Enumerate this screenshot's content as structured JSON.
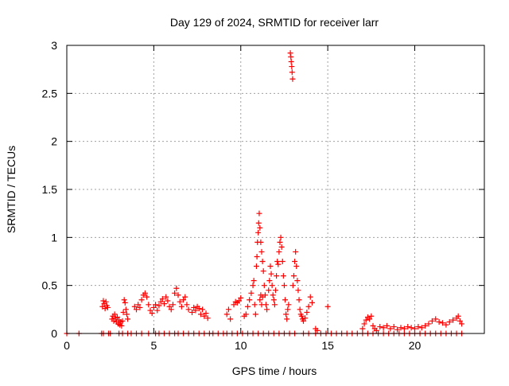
{
  "chart_data": {
    "type": "scatter",
    "title": "Day 129 of 2024, SRMTID for receiver larr",
    "xlabel": "GPS time / hours",
    "ylabel": "SRMTID / TECUs",
    "xlim": [
      0,
      24
    ],
    "ylim": [
      0,
      3
    ],
    "xticks": [
      0,
      5,
      10,
      15,
      20
    ],
    "xtick_labels": [
      "0",
      "5",
      "10",
      "15",
      "20"
    ],
    "yticks": [
      0,
      0.5,
      1,
      1.5,
      2,
      2.5,
      3
    ],
    "ytick_labels": [
      "0",
      "0.5",
      "1",
      "1.5",
      "2",
      "2.5",
      "3"
    ],
    "grid": true,
    "marker": "+",
    "marker_color": "#ff0000",
    "series": [
      {
        "name": "SRMTID",
        "points": [
          [
            0.0,
            0
          ],
          [
            0.7,
            0
          ],
          [
            2.0,
            0
          ],
          [
            2.1,
            0
          ],
          [
            2.4,
            0
          ],
          [
            2.5,
            0
          ],
          [
            3.0,
            0
          ],
          [
            3.2,
            0
          ],
          [
            3.5,
            0
          ],
          [
            3.7,
            0
          ],
          [
            4.0,
            0
          ],
          [
            4.3,
            0
          ],
          [
            4.7,
            0
          ],
          [
            5.1,
            0
          ],
          [
            5.3,
            0
          ],
          [
            5.6,
            0
          ],
          [
            5.9,
            0
          ],
          [
            6.2,
            0
          ],
          [
            6.4,
            0
          ],
          [
            6.7,
            0
          ],
          [
            7.0,
            0
          ],
          [
            7.3,
            0
          ],
          [
            7.6,
            0
          ],
          [
            7.9,
            0
          ],
          [
            8.2,
            0
          ],
          [
            8.4,
            0
          ],
          [
            8.7,
            0
          ],
          [
            9.0,
            0
          ],
          [
            9.2,
            0
          ],
          [
            9.5,
            0
          ],
          [
            9.8,
            0
          ],
          [
            10.1,
            0
          ],
          [
            10.4,
            0
          ],
          [
            10.7,
            0
          ],
          [
            11.0,
            0
          ],
          [
            11.3,
            0
          ],
          [
            11.6,
            0
          ],
          [
            11.9,
            0
          ],
          [
            12.2,
            0
          ],
          [
            12.5,
            0
          ],
          [
            12.8,
            0
          ],
          [
            13.1,
            0
          ],
          [
            13.6,
            0
          ],
          [
            13.9,
            0
          ],
          [
            14.3,
            0
          ],
          [
            14.6,
            0
          ],
          [
            14.9,
            0
          ],
          [
            15.2,
            0
          ],
          [
            15.5,
            0
          ],
          [
            15.8,
            0
          ],
          [
            16.1,
            0
          ],
          [
            16.4,
            0
          ],
          [
            16.7,
            0
          ],
          [
            17.0,
            0
          ],
          [
            17.3,
            0
          ],
          [
            17.6,
            0
          ],
          [
            17.9,
            0
          ],
          [
            18.2,
            0
          ],
          [
            18.5,
            0
          ],
          [
            18.8,
            0
          ],
          [
            19.1,
            0
          ],
          [
            19.4,
            0
          ],
          [
            19.7,
            0
          ],
          [
            20.0,
            0
          ],
          [
            20.3,
            0
          ],
          [
            20.6,
            0
          ],
          [
            20.9,
            0
          ],
          [
            21.2,
            0
          ],
          [
            21.5,
            0
          ],
          [
            21.8,
            0
          ],
          [
            22.1,
            0
          ],
          [
            22.4,
            0
          ],
          [
            22.7,
            0
          ],
          [
            2.05,
            0.28
          ],
          [
            2.1,
            0.34
          ],
          [
            2.15,
            0.31
          ],
          [
            2.2,
            0.26
          ],
          [
            2.25,
            0.33
          ],
          [
            2.3,
            0.29
          ],
          [
            2.35,
            0.27
          ],
          [
            2.6,
            0.15
          ],
          [
            2.65,
            0.18
          ],
          [
            2.7,
            0.13
          ],
          [
            2.75,
            0.2
          ],
          [
            2.8,
            0.16
          ],
          [
            2.85,
            0.12
          ],
          [
            2.9,
            0.17
          ],
          [
            2.95,
            0.1
          ],
          [
            3.0,
            0.14
          ],
          [
            3.05,
            0.09
          ],
          [
            3.1,
            0.12
          ],
          [
            3.15,
            0.08
          ],
          [
            3.2,
            0.13
          ],
          [
            3.25,
            0.22
          ],
          [
            3.3,
            0.35
          ],
          [
            3.35,
            0.32
          ],
          [
            3.4,
            0.25
          ],
          [
            3.45,
            0.2
          ],
          [
            3.5,
            0.15
          ],
          [
            3.9,
            0.28
          ],
          [
            4.0,
            0.25
          ],
          [
            4.1,
            0.3
          ],
          [
            4.2,
            0.27
          ],
          [
            4.3,
            0.35
          ],
          [
            4.4,
            0.4
          ],
          [
            4.5,
            0.42
          ],
          [
            4.6,
            0.38
          ],
          [
            4.7,
            0.3
          ],
          [
            4.8,
            0.24
          ],
          [
            4.9,
            0.21
          ],
          [
            5.0,
            0.27
          ],
          [
            5.1,
            0.3
          ],
          [
            5.2,
            0.24
          ],
          [
            5.3,
            0.29
          ],
          [
            5.4,
            0.33
          ],
          [
            5.5,
            0.36
          ],
          [
            5.6,
            0.31
          ],
          [
            5.7,
            0.38
          ],
          [
            5.8,
            0.34
          ],
          [
            5.9,
            0.28
          ],
          [
            6.0,
            0.25
          ],
          [
            6.1,
            0.3
          ],
          [
            6.2,
            0.42
          ],
          [
            6.3,
            0.47
          ],
          [
            6.4,
            0.4
          ],
          [
            6.5,
            0.33
          ],
          [
            6.6,
            0.28
          ],
          [
            6.7,
            0.35
          ],
          [
            6.8,
            0.38
          ],
          [
            6.9,
            0.3
          ],
          [
            7.0,
            0.25
          ],
          [
            7.2,
            0.22
          ],
          [
            7.3,
            0.27
          ],
          [
            7.4,
            0.24
          ],
          [
            7.5,
            0.28
          ],
          [
            7.6,
            0.26
          ],
          [
            7.7,
            0.2
          ],
          [
            7.8,
            0.25
          ],
          [
            7.9,
            0.18
          ],
          [
            8.0,
            0.21
          ],
          [
            8.1,
            0.16
          ],
          [
            9.2,
            0.2
          ],
          [
            9.3,
            0.25
          ],
          [
            9.4,
            0.15
          ],
          [
            9.6,
            0.3
          ],
          [
            9.7,
            0.33
          ],
          [
            9.8,
            0.32
          ],
          [
            9.9,
            0.34
          ],
          [
            10.0,
            0.37
          ],
          [
            10.2,
            0.18
          ],
          [
            10.3,
            0.2
          ],
          [
            10.4,
            0.28
          ],
          [
            10.5,
            0.35
          ],
          [
            10.6,
            0.42
          ],
          [
            10.7,
            0.5
          ],
          [
            10.75,
            0.55
          ],
          [
            10.8,
            0.3
          ],
          [
            10.85,
            0.2
          ],
          [
            10.9,
            0.7
          ],
          [
            10.93,
            0.8
          ],
          [
            10.96,
            0.95
          ],
          [
            11.0,
            1.05
          ],
          [
            11.03,
            1.15
          ],
          [
            11.06,
            1.25
          ],
          [
            11.1,
            1.1
          ],
          [
            11.15,
            0.95
          ],
          [
            11.2,
            0.85
          ],
          [
            11.25,
            0.75
          ],
          [
            11.3,
            0.65
          ],
          [
            11.35,
            0.5
          ],
          [
            11.4,
            0.4
          ],
          [
            11.45,
            0.3
          ],
          [
            11.5,
            0.25
          ],
          [
            11.1,
            0.35
          ],
          [
            11.15,
            0.4
          ],
          [
            11.2,
            0.3
          ],
          [
            11.25,
            0.38
          ],
          [
            11.6,
            0.45
          ],
          [
            11.65,
            0.55
          ],
          [
            11.7,
            0.7
          ],
          [
            11.75,
            0.62
          ],
          [
            11.8,
            0.5
          ],
          [
            11.85,
            0.4
          ],
          [
            11.9,
            0.35
          ],
          [
            11.95,
            0.3
          ],
          [
            12.0,
            0.45
          ],
          [
            12.05,
            0.6
          ],
          [
            12.1,
            0.75
          ],
          [
            12.15,
            0.72
          ],
          [
            12.2,
            0.85
          ],
          [
            12.25,
            0.95
          ],
          [
            12.3,
            1.0
          ],
          [
            12.35,
            0.9
          ],
          [
            12.4,
            0.75
          ],
          [
            12.45,
            0.6
          ],
          [
            12.5,
            0.5
          ],
          [
            12.55,
            0.35
          ],
          [
            12.6,
            0.2
          ],
          [
            12.65,
            0.15
          ],
          [
            12.7,
            0.25
          ],
          [
            12.75,
            0.3
          ],
          [
            12.85,
            2.92
          ],
          [
            12.88,
            2.88
          ],
          [
            12.9,
            2.83
          ],
          [
            12.93,
            2.78
          ],
          [
            12.95,
            2.72
          ],
          [
            12.98,
            2.65
          ],
          [
            13.0,
            0.5
          ],
          [
            13.05,
            0.6
          ],
          [
            13.1,
            0.75
          ],
          [
            13.15,
            0.85
          ],
          [
            13.2,
            0.7
          ],
          [
            13.25,
            0.55
          ],
          [
            13.3,
            0.45
          ],
          [
            13.35,
            0.35
          ],
          [
            13.4,
            0.25
          ],
          [
            13.45,
            0.2
          ],
          [
            13.5,
            0.18
          ],
          [
            13.55,
            0.15
          ],
          [
            13.6,
            0.13
          ],
          [
            13.7,
            0.16
          ],
          [
            13.8,
            0.22
          ],
          [
            13.9,
            0.28
          ],
          [
            14.0,
            0.38
          ],
          [
            14.1,
            0.32
          ],
          [
            14.3,
            0.05
          ],
          [
            14.4,
            0.03
          ],
          [
            15.0,
            0.28
          ],
          [
            17.0,
            0.05
          ],
          [
            17.1,
            0.1
          ],
          [
            17.2,
            0.14
          ],
          [
            17.3,
            0.17
          ],
          [
            17.4,
            0.15
          ],
          [
            17.5,
            0.18
          ],
          [
            17.6,
            0.08
          ],
          [
            17.7,
            0.05
          ],
          [
            17.8,
            0.03
          ],
          [
            18.0,
            0.07
          ],
          [
            18.2,
            0.06
          ],
          [
            18.4,
            0.08
          ],
          [
            18.6,
            0.05
          ],
          [
            18.8,
            0.07
          ],
          [
            19.0,
            0.04
          ],
          [
            19.2,
            0.06
          ],
          [
            19.4,
            0.05
          ],
          [
            19.6,
            0.07
          ],
          [
            19.8,
            0.06
          ],
          [
            20.0,
            0.05
          ],
          [
            20.2,
            0.07
          ],
          [
            20.4,
            0.06
          ],
          [
            20.6,
            0.08
          ],
          [
            20.8,
            0.1
          ],
          [
            21.0,
            0.13
          ],
          [
            21.2,
            0.15
          ],
          [
            21.4,
            0.12
          ],
          [
            21.6,
            0.11
          ],
          [
            21.8,
            0.09
          ],
          [
            22.0,
            0.12
          ],
          [
            22.2,
            0.14
          ],
          [
            22.4,
            0.16
          ],
          [
            22.5,
            0.18
          ],
          [
            22.6,
            0.13
          ],
          [
            22.7,
            0.1
          ]
        ]
      }
    ]
  }
}
